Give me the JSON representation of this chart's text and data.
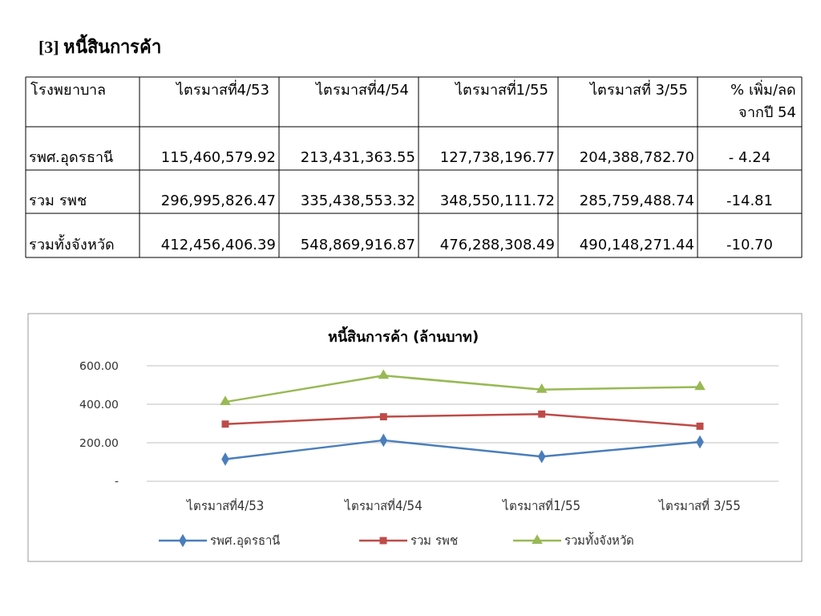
{
  "chart_data": {
    "type": "line",
    "title": "หนี้สินการค้า (ล้านบาท)",
    "annotations": [
      "[3] หนี้สินการค้า",
      "โรงพยาบาล",
      "% เพิ่ม/ลด จากปี 54",
      "- 4.24",
      "-14.81",
      "-10.70",
      "115,460,579.92",
      "213,431,363.55",
      "127,738,196.77",
      "204,388,782.70",
      "296,995,826.47",
      "335,438,553.32",
      "348,550,111.72",
      "285,759,488.74",
      "412,456,406.39",
      "548,869,916.87",
      "476,288,308.49",
      "490,148,271.44"
    ],
    "categories": [
      "ไตรมาสที่4/53",
      "ไตรมาสที่4/54",
      "ไตรมาสที่1/55",
      "ไตรมาสที่ 3/55"
    ],
    "series": [
      {
        "name": "รพศ.อุดรธานี",
        "color": "#4a7ebb",
        "marker": "diamond",
        "values": [
          115,
          213,
          128,
          204
        ]
      },
      {
        "name": "รวม รพช",
        "color": "#be4b48",
        "marker": "square",
        "values": [
          297,
          335,
          349,
          286
        ]
      },
      {
        "name": "รวมทั้งจังหวัด",
        "color": "#98b954",
        "marker": "triangle",
        "values": [
          412,
          549,
          476,
          490
        ]
      }
    ],
    "ylim": [
      0,
      600
    ],
    "yticks": [
      {
        "value": 0,
        "label": "-"
      },
      {
        "value": 200,
        "label": "200.00"
      },
      {
        "value": 400,
        "label": "400.00"
      },
      {
        "value": 600,
        "label": "600.00"
      }
    ],
    "grid": "y",
    "legend": "bottom"
  }
}
